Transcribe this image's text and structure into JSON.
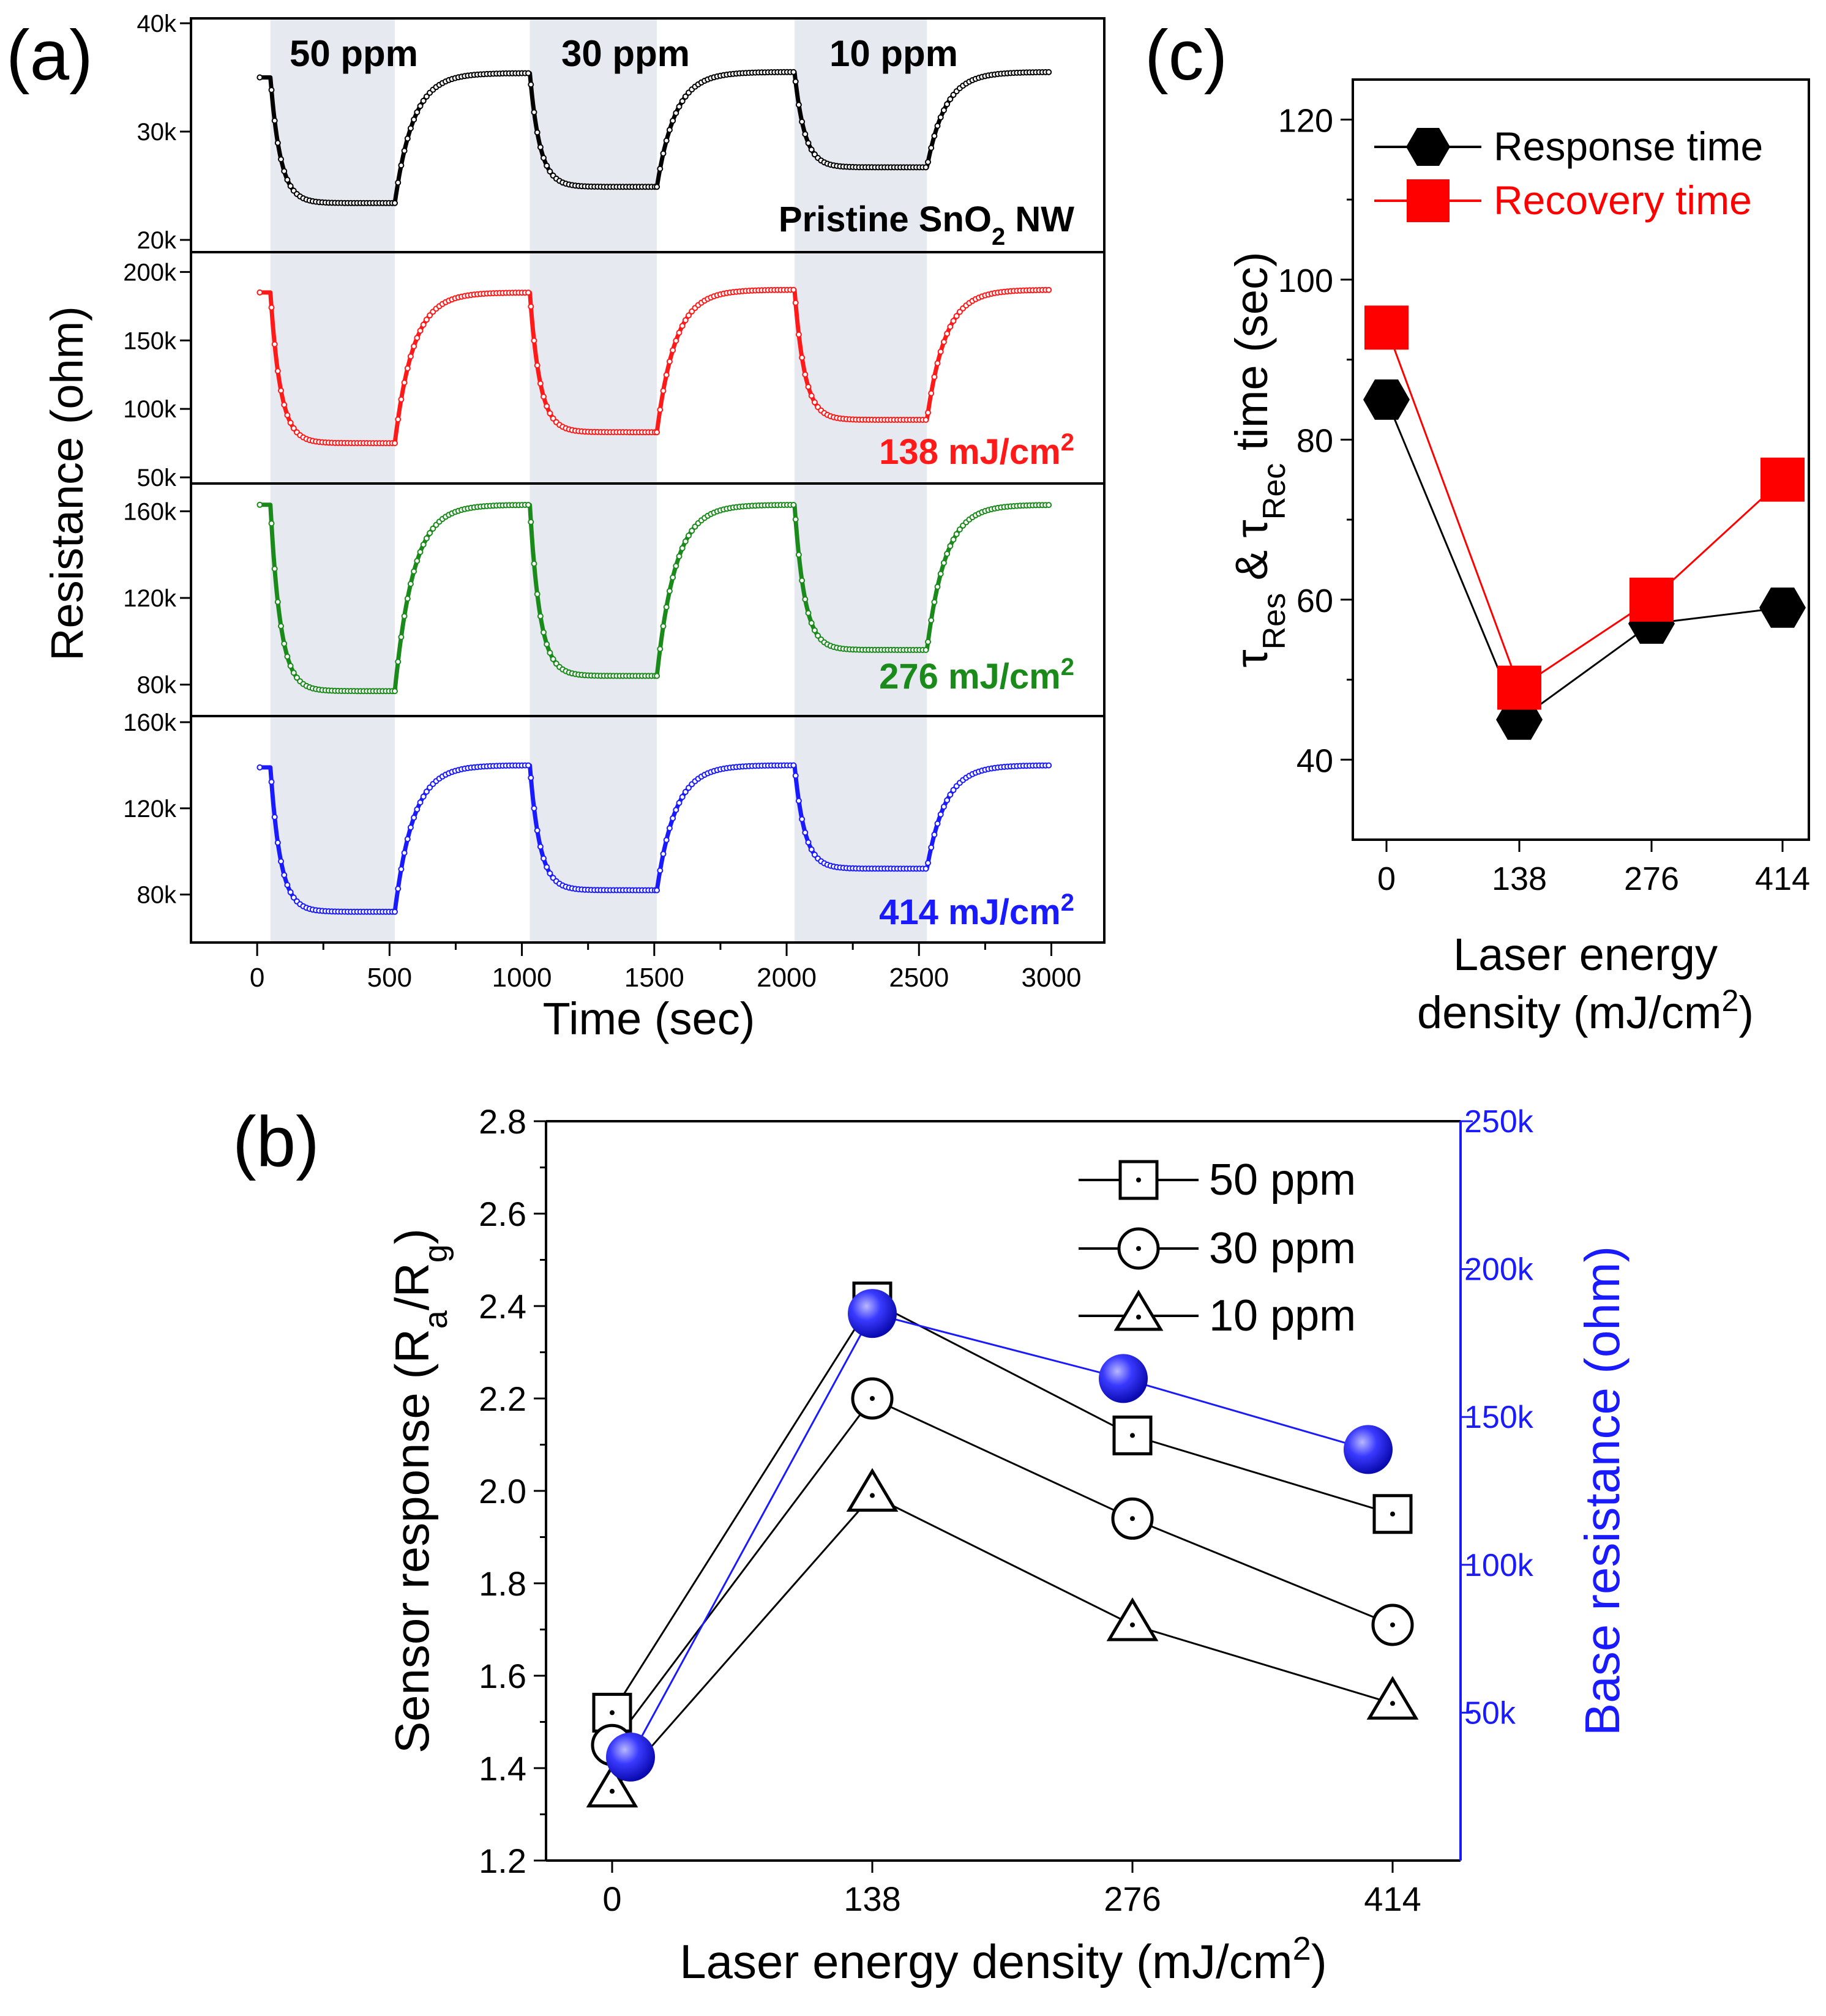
{
  "chart_data": [
    {
      "id": "a",
      "panel_label": "(a)",
      "type": "line",
      "xlabel": "Time (sec)",
      "ylabel": "Resistance (ohm)",
      "xlim": [
        -250,
        3200
      ],
      "xticks": [
        0,
        500,
        1000,
        1500,
        2000,
        2500,
        3000
      ],
      "gas_on_windows": [
        [
          50,
          520
        ],
        [
          1030,
          1510
        ],
        [
          2030,
          2530
        ]
      ],
      "concentration_labels": [
        "50 ppm",
        "30 ppm",
        "10 ppm"
      ],
      "panels": [
        {
          "name": "Pristine SnO2 NW",
          "label_parts": [
            "Pristine SnO",
            "2",
            " NW"
          ],
          "color": "#000000",
          "ylim": [
            20000,
            40000
          ],
          "yticks": [
            20000,
            30000,
            40000
          ],
          "ytick_labels": [
            "20k",
            "30k",
            "40k"
          ],
          "start": 35000,
          "baseline": [
            35000,
            35400,
            35500
          ],
          "gas_level": [
            23400,
            24900,
            26700
          ]
        },
        {
          "name": "138 mJ/cm2",
          "label_parts": [
            "138 mJ/cm",
            "2",
            ""
          ],
          "color": "#ff1a1a",
          "ylim": [
            50000,
            210000
          ],
          "yticks": [
            50000,
            100000,
            150000,
            200000
          ],
          "ytick_labels": [
            "50k",
            "100k",
            "150k",
            "200k"
          ],
          "start": 185000,
          "baseline": [
            185000,
            185000,
            187000
          ],
          "gas_level": [
            75000,
            83000,
            92000
          ]
        },
        {
          "name": "276 mJ/cm2",
          "label_parts": [
            "276 mJ/cm",
            "2",
            ""
          ],
          "color": "#1a8a1a",
          "ylim": [
            70000,
            170000
          ],
          "yticks": [
            80000,
            120000,
            160000
          ],
          "ytick_labels": [
            "80k",
            "120k",
            "160k"
          ],
          "start": 163000,
          "baseline": [
            163000,
            163000,
            163000
          ],
          "gas_level": [
            77000,
            84000,
            96000
          ]
        },
        {
          "name": "414 mJ/cm2",
          "label_parts": [
            "414 mJ/cm",
            "2",
            ""
          ],
          "color": "#1a1aff",
          "ylim": [
            60000,
            160000
          ],
          "yticks": [
            80000,
            120000,
            160000
          ],
          "ytick_labels": [
            "80k",
            "120k",
            "160k"
          ],
          "start": 139000,
          "baseline": [
            139000,
            140000,
            140000
          ],
          "gas_level": [
            72000,
            82000,
            92000
          ]
        }
      ]
    },
    {
      "id": "b",
      "panel_label": "(b)",
      "type": "scatter",
      "xlabel": "Laser energy density (mJ/cm2)",
      "xlabel_parts": [
        "Laser energy density (mJ/cm",
        "2",
        ")"
      ],
      "ylabel": "Sensor response (Ra/Rg)",
      "ylabel_parts": [
        "Sensor response (R",
        "a",
        "/R",
        "g",
        ")"
      ],
      "ylabel_right": "Base resistance (ohm)",
      "categories": [
        "0",
        "138",
        "276",
        "414"
      ],
      "ylim": [
        1.2,
        2.8
      ],
      "yticks": [
        1.2,
        1.4,
        1.6,
        1.8,
        2.0,
        2.2,
        2.4,
        2.6,
        2.8
      ],
      "ytick_labels": [
        "1.2",
        "1.4",
        "1.6",
        "1.8",
        "2.0",
        "2.2",
        "2.4",
        "2.6",
        "2.8"
      ],
      "ylim_right": [
        0,
        250000
      ],
      "yticks_right": [
        50000,
        100000,
        150000,
        200000,
        250000
      ],
      "ytick_labels_right": [
        "50k",
        "100k",
        "150k",
        "200k",
        "250k"
      ],
      "series": [
        {
          "name": "50 ppm",
          "marker": "square",
          "values": [
            1.52,
            2.41,
            2.12,
            1.95
          ]
        },
        {
          "name": "30 ppm",
          "marker": "circle",
          "values": [
            1.45,
            2.2,
            1.94,
            1.71
          ]
        },
        {
          "name": "10 ppm",
          "marker": "triangle",
          "values": [
            1.35,
            1.99,
            1.71,
            1.54
          ]
        }
      ],
      "base_resistance": {
        "name": "Base resistance",
        "color": "#1a1aff",
        "x": [
          0,
          138,
          276,
          414
        ],
        "values": [
          35000,
          185000,
          163000,
          139000
        ]
      },
      "legend": [
        "50 ppm",
        "30 ppm",
        "10 ppm"
      ]
    },
    {
      "id": "c",
      "panel_label": "(c)",
      "type": "line",
      "xlabel_lines": [
        "Laser energy",
        "density (mJ/cm2)"
      ],
      "xlabel_parts_line2": [
        "density (mJ/cm",
        "2",
        ")"
      ],
      "ylabel": "τRes & τRec time (sec)",
      "ylabel_parts": [
        "τ",
        "Res",
        " & τ",
        "Rec",
        " time (sec)"
      ],
      "categories": [
        "0",
        "138",
        "276",
        "414"
      ],
      "ylim": [
        30,
        125
      ],
      "yticks": [
        40,
        60,
        80,
        100,
        120
      ],
      "ytick_labels": [
        "40",
        "60",
        "80",
        "100",
        "120"
      ],
      "series": [
        {
          "name": "Response time",
          "color": "#000000",
          "marker": "hexagon",
          "values": [
            85,
            45,
            57,
            59
          ]
        },
        {
          "name": "Recovery time",
          "color": "#ff0000",
          "marker": "square",
          "values": [
            94,
            49,
            60,
            75
          ]
        }
      ],
      "legend": [
        "Response time",
        "Recovery time"
      ]
    }
  ]
}
